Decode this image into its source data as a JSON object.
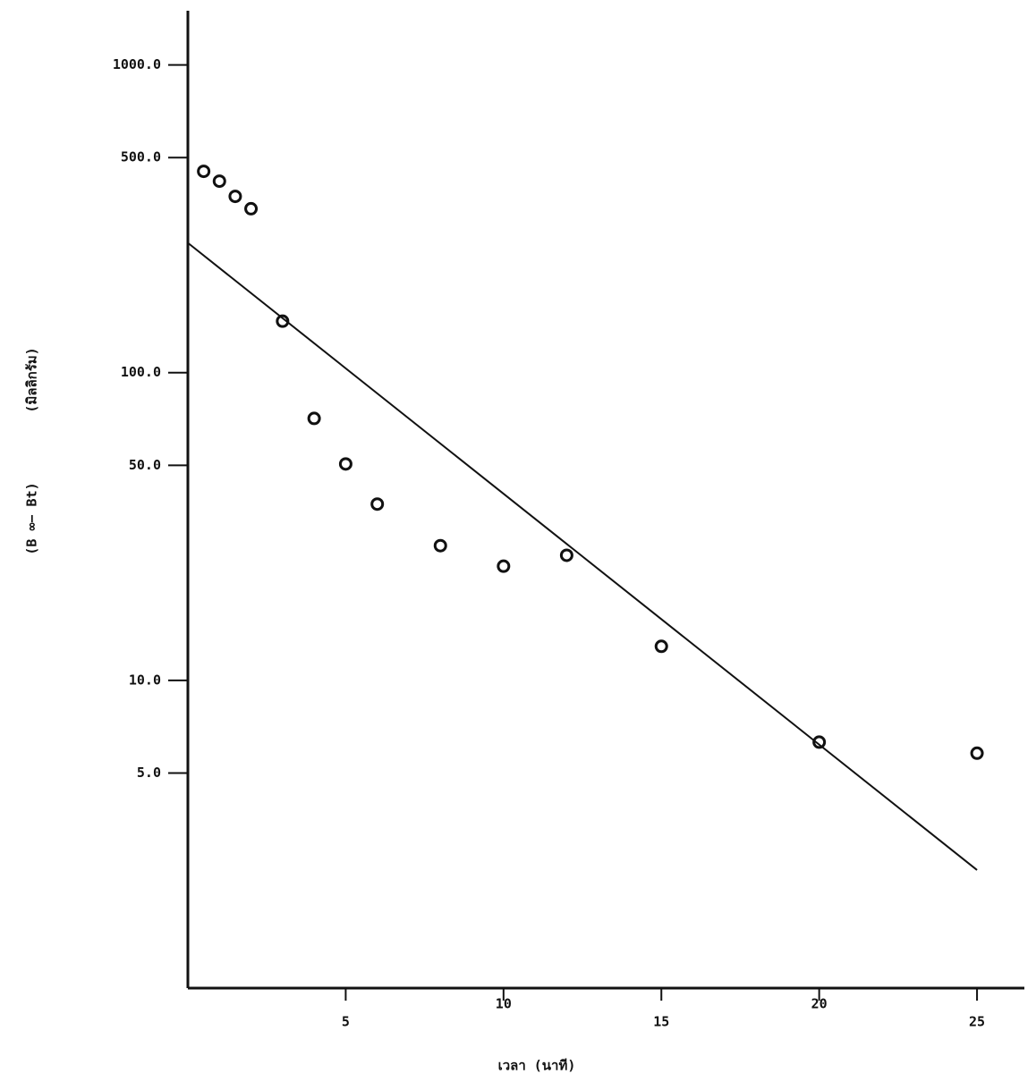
{
  "chart_data": {
    "type": "scatter",
    "x_label": "เวลา (นาที)",
    "y_label": "(B ∞− Bt)",
    "y_unit": "(มิลลิกรัม)",
    "log_y": true,
    "x": [
      0.5,
      1,
      1.5,
      2,
      3,
      4,
      5,
      6,
      8,
      10,
      12,
      15,
      20,
      25
    ],
    "values": [
      451,
      419,
      374,
      341,
      147,
      71,
      50.5,
      37.4,
      27.4,
      23.5,
      25.5,
      12.9,
      6.3,
      5.8
    ],
    "color": "#111111",
    "fit_line": {
      "x": [
        0,
        25
      ],
      "values": [
        264,
        2.42
      ]
    },
    "xlim": [
      0,
      26.5
    ],
    "ylim": [
      1,
      1500
    ],
    "xticks": [
      5,
      10,
      15,
      20,
      25
    ],
    "yticks": [
      {
        "value": 5,
        "label": "5.0"
      },
      {
        "value": 10,
        "label": "10.0"
      },
      {
        "value": 50,
        "label": "50.0"
      },
      {
        "value": 100,
        "label": "100.0"
      },
      {
        "value": 500,
        "label": "500.0"
      },
      {
        "value": 1000,
        "label": "1000.0"
      }
    ]
  }
}
